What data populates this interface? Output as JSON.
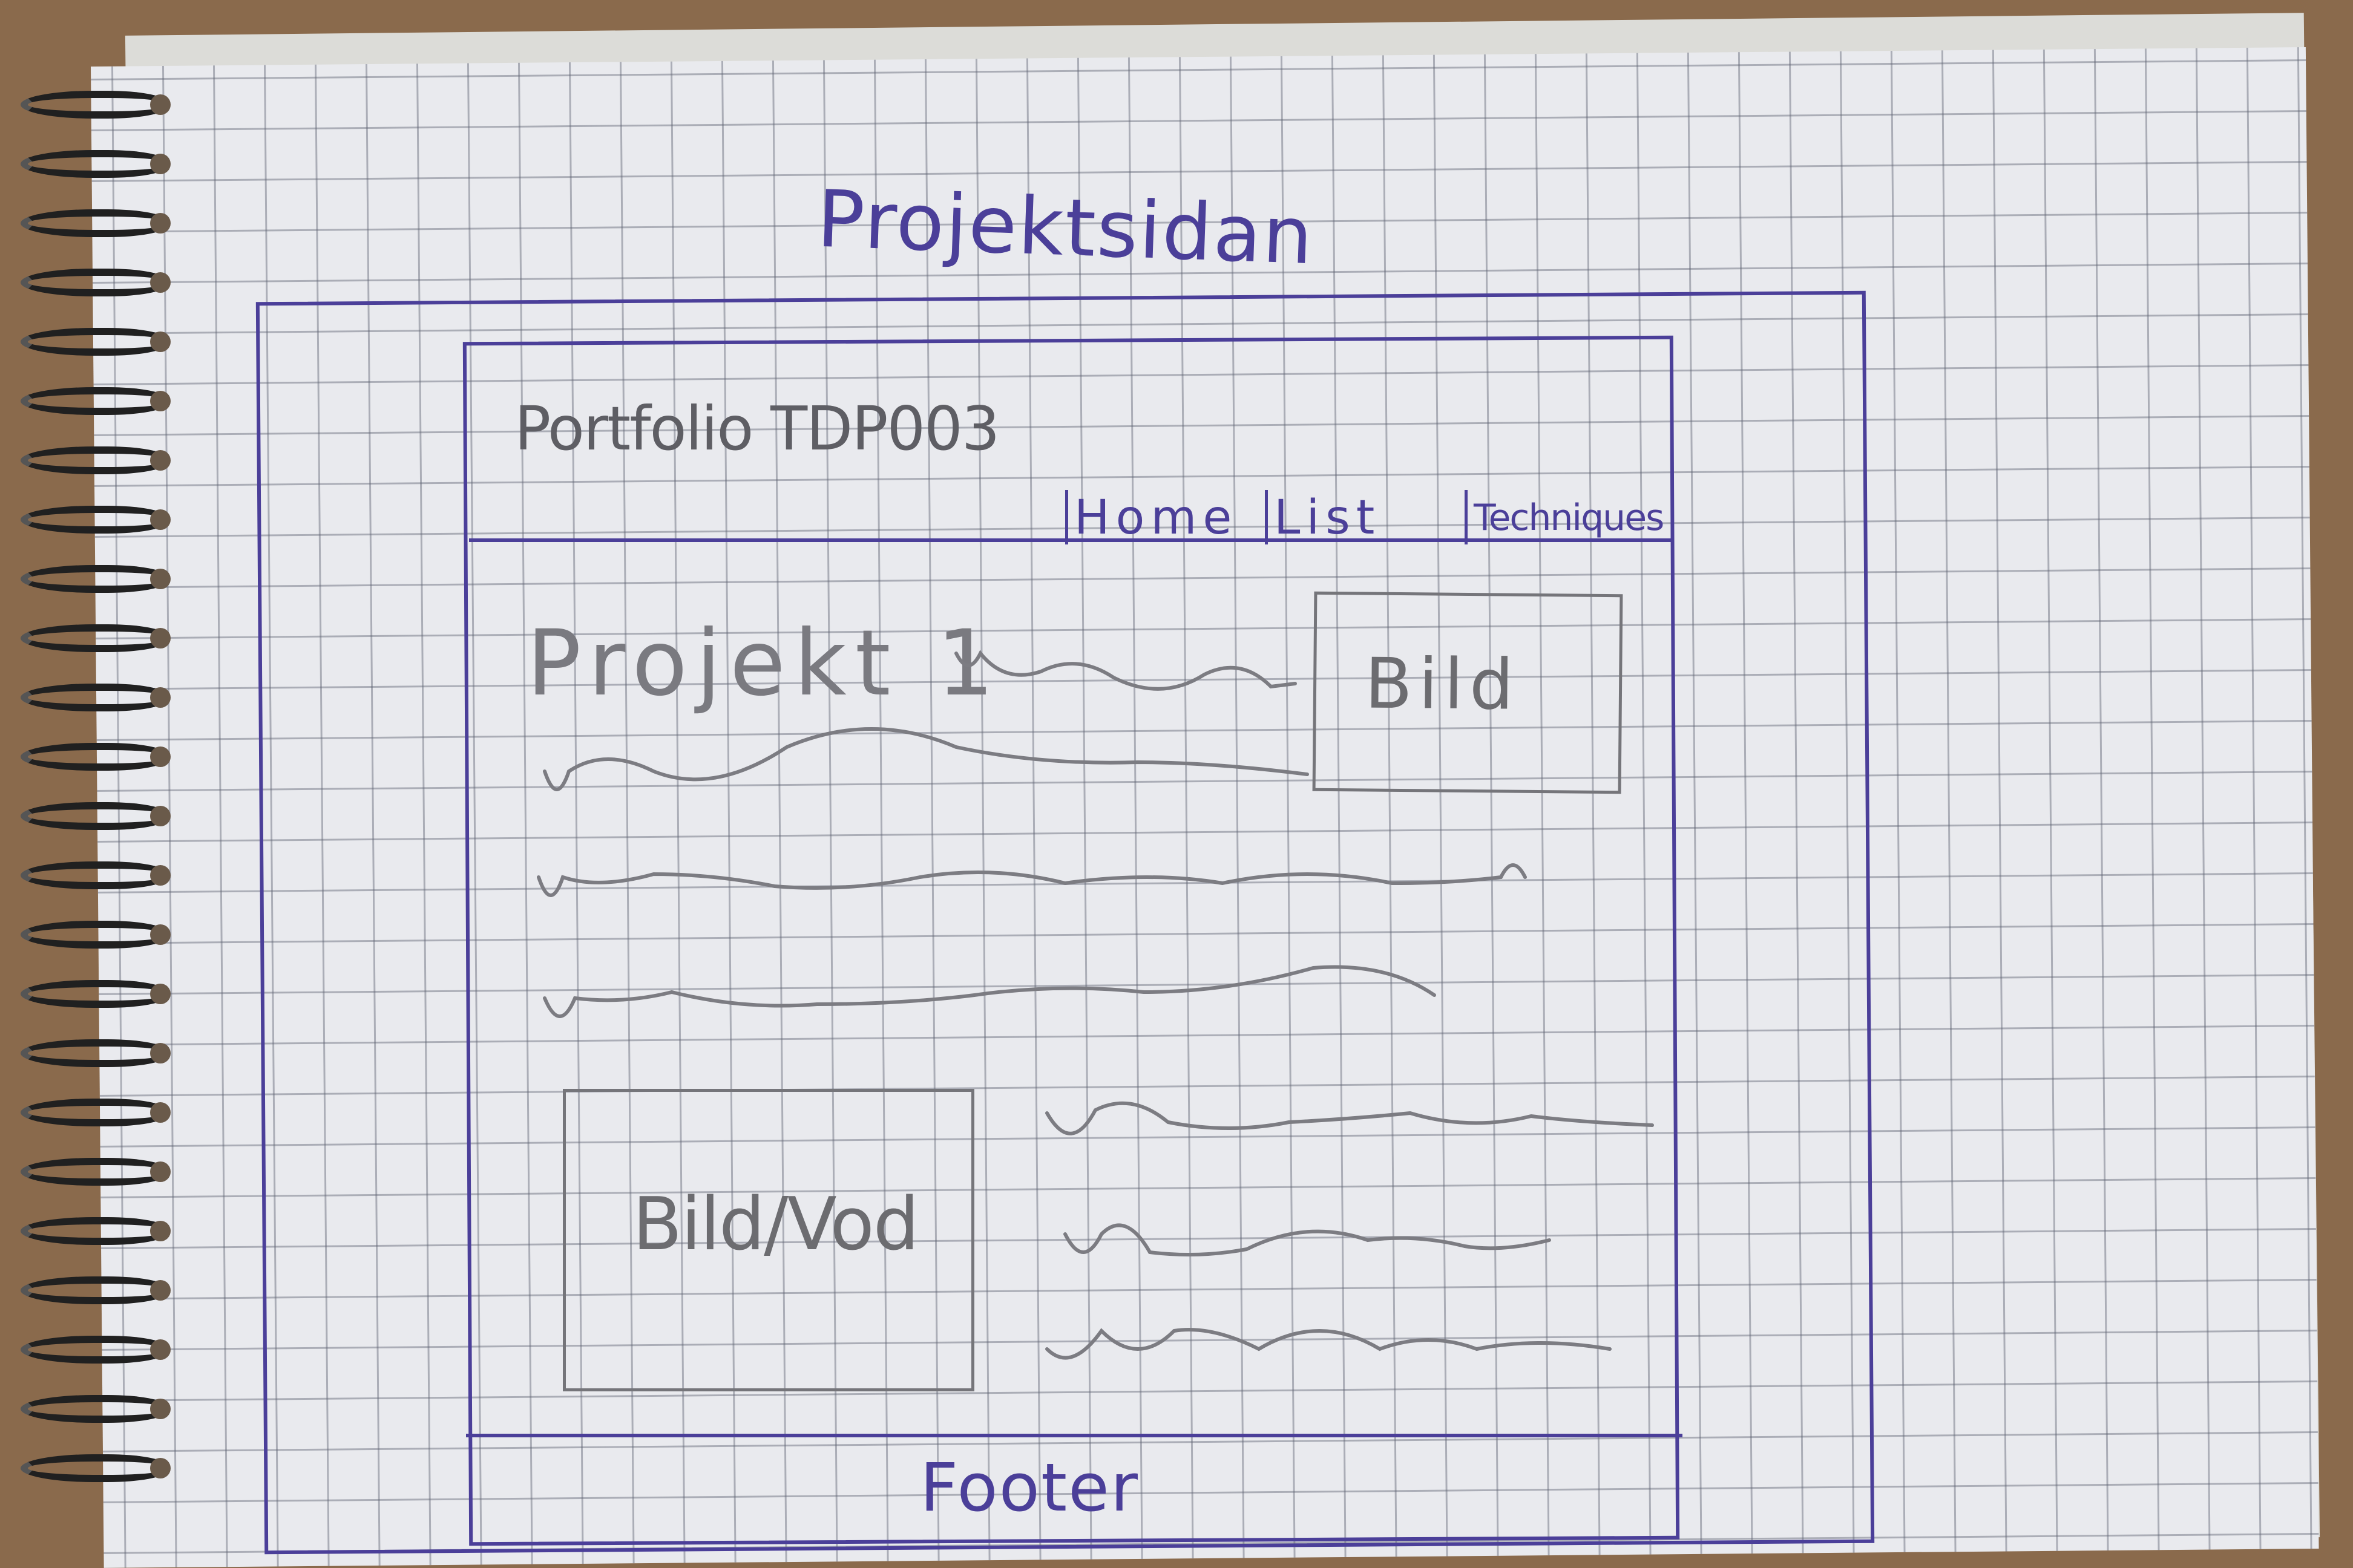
{
  "sketch": {
    "title": "Projektsidan",
    "site_title": "Portfolio TDP003",
    "nav": {
      "home": "Home",
      "list": "List",
      "techniques": "Techniques"
    },
    "project_heading": "Projekt 1",
    "image_label": "Bild",
    "media_label": "Bild/Vod",
    "footer": "Footer"
  },
  "colors": {
    "ink": "#4b3f99",
    "pencil": "#6c6c70",
    "paper": "#e9eaee",
    "desk": "#8a6a4c"
  }
}
